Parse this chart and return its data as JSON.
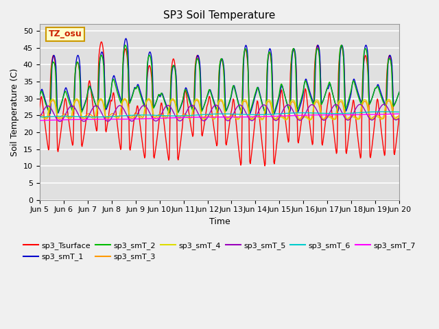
{
  "title": "SP3 Soil Temperature",
  "xlabel": "Time",
  "ylabel": "Soil Temperature (C)",
  "ylim": [
    0,
    52
  ],
  "yticks": [
    0,
    5,
    10,
    15,
    20,
    25,
    30,
    35,
    40,
    45,
    50
  ],
  "xtick_labels": [
    "Jun 5",
    "Jun 6",
    "Jun 7",
    "Jun 8",
    "Jun 9",
    "Jun 10",
    "Jun 11",
    "Jun 12",
    "Jun 13",
    "Jun 14",
    "Jun 15",
    "Jun 16",
    "Jun 17",
    "Jun 18",
    "Jun 19",
    "Jun 20"
  ],
  "annotation_text": "TZ_osu",
  "annotation_color": "#cc2200",
  "annotation_bg": "#ffffcc",
  "annotation_border": "#cc9900",
  "series_colors": {
    "sp3_Tsurface": "#ff0000",
    "sp3_smT_1": "#0000cc",
    "sp3_smT_2": "#00bb00",
    "sp3_smT_3": "#ff9900",
    "sp3_smT_4": "#dddd00",
    "sp3_smT_5": "#9900bb",
    "sp3_smT_6": "#00cccc",
    "sp3_smT_7": "#ff00ff"
  },
  "series_order": [
    "sp3_Tsurface",
    "sp3_smT_1",
    "sp3_smT_2",
    "sp3_smT_3",
    "sp3_smT_4",
    "sp3_smT_5",
    "sp3_smT_6",
    "sp3_smT_7"
  ],
  "fig_facecolor": "#f0f0f0",
  "ax_facecolor": "#e0e0e0",
  "grid_color": "#ffffff",
  "title_fontsize": 11,
  "axis_label_fontsize": 9,
  "tick_fontsize": 8,
  "legend_fontsize": 8,
  "line_width": 1.0,
  "n_days": 15,
  "pts_per_day": 48
}
